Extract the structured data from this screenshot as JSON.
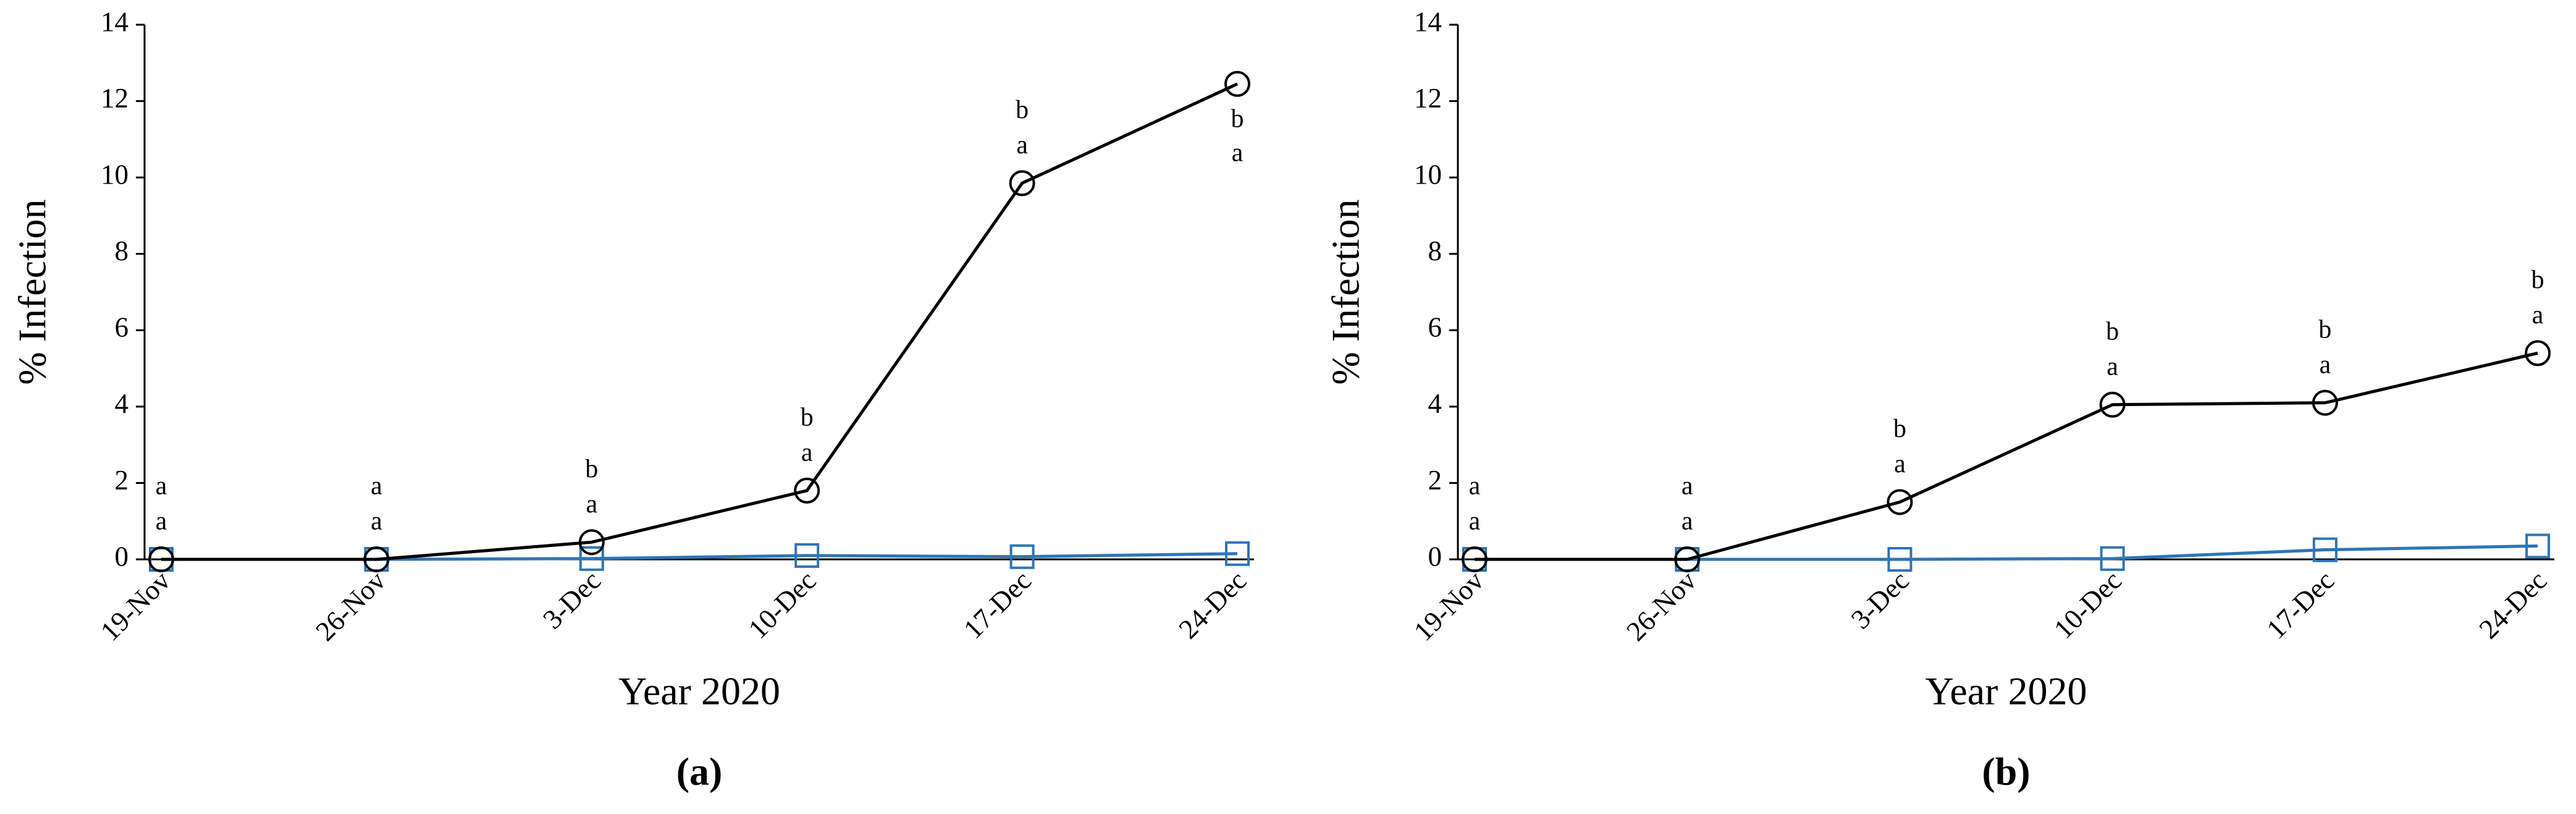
{
  "chart_data": [
    {
      "type": "line",
      "panel_label": "(a)",
      "x_label": "Year 2020",
      "y_label": "% Infection",
      "categories": [
        "19-Nov",
        "26-Nov",
        "3-Dec",
        "10-Dec",
        "17-Dec",
        "24-Dec"
      ],
      "ylim": [
        0,
        14
      ],
      "yticks": [
        0,
        2,
        4,
        6,
        8,
        10,
        12,
        14
      ],
      "series": [
        {
          "color": "#000000",
          "marker": "circle",
          "values": [
            0,
            0,
            0.45,
            1.8,
            9.85,
            12.45
          ],
          "letters": [
            "a",
            "a",
            "b",
            "b",
            "b",
            "b"
          ]
        },
        {
          "color": "#2e75b6",
          "marker": "square",
          "values": [
            0,
            0,
            0.02,
            0.1,
            0.07,
            0.15
          ],
          "letters": [
            "a",
            "a",
            "a",
            "a",
            "a",
            "a"
          ]
        }
      ]
    },
    {
      "type": "line",
      "panel_label": "(b)",
      "x_label": "Year 2020",
      "y_label": "% Infection",
      "categories": [
        "19-Nov",
        "26-Nov",
        "3-Dec",
        "10-Dec",
        "17-Dec",
        "24-Dec"
      ],
      "ylim": [
        0,
        14
      ],
      "yticks": [
        0,
        2,
        4,
        6,
        8,
        10,
        12,
        14
      ],
      "series": [
        {
          "color": "#000000",
          "marker": "circle",
          "values": [
            0,
            0,
            1.5,
            4.05,
            4.1,
            5.4
          ],
          "letters": [
            "a",
            "a",
            "b",
            "b",
            "b",
            "b"
          ]
        },
        {
          "color": "#2e75b6",
          "marker": "square",
          "values": [
            0,
            0,
            0,
            0.02,
            0.25,
            0.35
          ],
          "letters": [
            "a",
            "a",
            "a",
            "a",
            "a",
            "a"
          ]
        }
      ]
    }
  ]
}
